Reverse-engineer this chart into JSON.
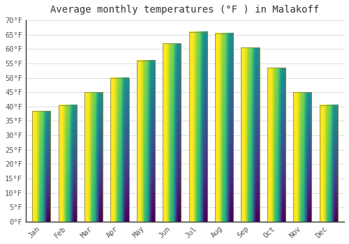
{
  "title": "Average monthly temperatures (°F ) in Malakoff",
  "months": [
    "Jan",
    "Feb",
    "Mar",
    "Apr",
    "May",
    "Jun",
    "Jul",
    "Aug",
    "Sep",
    "Oct",
    "Nov",
    "Dec"
  ],
  "values": [
    38.5,
    40.5,
    45.0,
    50.0,
    56.0,
    62.0,
    66.0,
    65.5,
    60.5,
    53.5,
    45.0,
    40.5
  ],
  "bar_color_bottom": "#FFA500",
  "bar_color_top": "#FFD080",
  "bar_edge_color": "#888844",
  "ylim": [
    0,
    70
  ],
  "yticks": [
    0,
    5,
    10,
    15,
    20,
    25,
    30,
    35,
    40,
    45,
    50,
    55,
    60,
    65,
    70
  ],
  "ytick_labels": [
    "0°F",
    "5°F",
    "10°F",
    "15°F",
    "20°F",
    "25°F",
    "30°F",
    "35°F",
    "40°F",
    "45°F",
    "50°F",
    "55°F",
    "60°F",
    "65°F",
    "70°F"
  ],
  "grid_color": "#dddddd",
  "background_color": "#ffffff",
  "title_fontsize": 10,
  "tick_fontsize": 7.5,
  "font_family": "monospace",
  "left_spine_color": "#333333",
  "bottom_spine_color": "#333333"
}
